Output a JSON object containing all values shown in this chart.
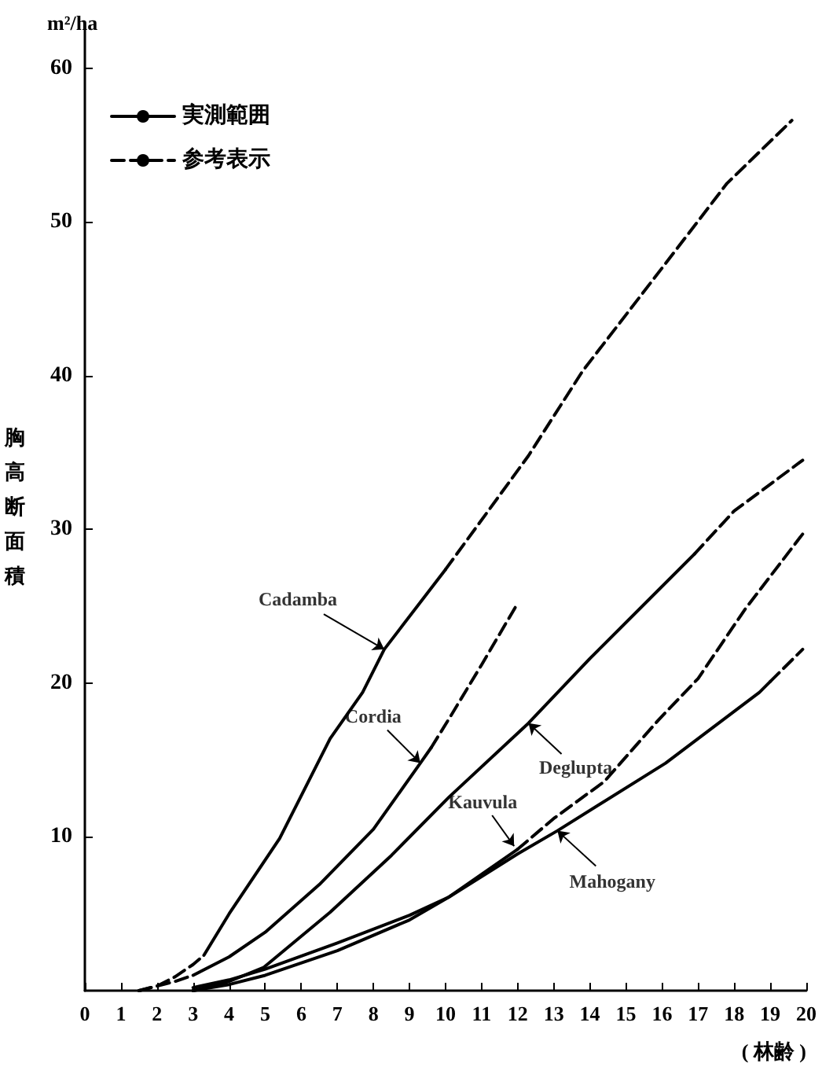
{
  "chart_data": {
    "type": "line",
    "ylabel": "胸高断面積",
    "xlabel": "( 林齢 )",
    "xlim": [
      0,
      20
    ],
    "xticks": [
      0,
      1,
      2,
      3,
      4,
      5,
      6,
      7,
      8,
      9,
      10,
      11,
      12,
      13,
      14,
      15,
      16,
      17,
      18,
      19,
      20
    ],
    "ylim": [
      0,
      63
    ],
    "yticks": [
      10,
      20,
      30,
      40,
      50,
      60
    ],
    "grid": false,
    "legend": "top left",
    "marker": "none",
    "annotations": [
      "m²/ha",
      {
        "text": "Cadamba",
        "x": 8.3,
        "y": 22.2
      },
      {
        "text": "Cordia",
        "x": 9.3,
        "y": 14.8
      },
      {
        "text": "Deglupta",
        "x": 12.3,
        "y": 17.4
      },
      {
        "text": "Kauvula",
        "x": 11.9,
        "y": 9.4
      },
      {
        "text": "Mahogany",
        "x": 13.1,
        "y": 10.4
      }
    ],
    "series": [
      {
        "name": "実測範囲",
        "color": "#000000",
        "line_style": "solid",
        "x": [
          3.3,
          4,
          5.4,
          6.8,
          7.7,
          8.3,
          10
        ],
        "values": [
          2.3,
          5.0,
          9.9,
          16.4,
          19.4,
          22.2,
          27.4
        ]
      },
      {
        "name": "参考表示",
        "color": "#000000",
        "line_style": "dashed",
        "x": [
          1.5,
          2,
          2.5,
          3,
          3.3
        ],
        "values": [
          0,
          0.3,
          0.9,
          1.7,
          2.3
        ]
      },
      {
        "color": "#000000",
        "line_style": "dashed",
        "x": [
          10,
          12.3,
          13.8,
          16.1,
          17.8,
          19.6
        ],
        "values": [
          27.4,
          34.8,
          40.3,
          47.3,
          52.5,
          56.6
        ]
      },
      {
        "color": "#000000",
        "line_style": "solid",
        "x": [
          3,
          4,
          5,
          6.5,
          8,
          9.3,
          9.6
        ],
        "values": [
          1.0,
          2.2,
          3.8,
          6.9,
          10.5,
          14.8,
          15.8
        ]
      },
      {
        "color": "#000000",
        "line_style": "dashed",
        "x": [
          1.5,
          2,
          2.5,
          3
        ],
        "values": [
          0,
          0.3,
          0.6,
          1.0
        ]
      },
      {
        "color": "#000000",
        "line_style": "dashed",
        "x": [
          9.6,
          10.1,
          11,
          12
        ],
        "values": [
          15.8,
          17.7,
          21.2,
          25.2
        ]
      },
      {
        "color": "#000000",
        "line_style": "solid",
        "x": [
          3,
          4,
          4.95,
          6.8,
          8.5,
          10.1,
          12.3,
          14,
          16.9
        ],
        "values": [
          0,
          0.6,
          1.5,
          5.1,
          8.8,
          12.6,
          17.4,
          21.6,
          28.4
        ]
      },
      {
        "color": "#000000",
        "line_style": "dashed",
        "x": [
          16.9,
          18,
          19.9
        ],
        "values": [
          28.4,
          31.2,
          34.5
        ]
      },
      {
        "color": "#000000",
        "line_style": "solid",
        "x": [
          3,
          4,
          5,
          7,
          9,
          10.1,
          12
        ],
        "values": [
          0.2,
          0.7,
          1.4,
          3.1,
          4.9,
          6.1,
          9.2
        ]
      },
      {
        "color": "#000000",
        "line_style": "dashed",
        "x": [
          12,
          13,
          14.4,
          15.9,
          17,
          18.3,
          19.9
        ],
        "values": [
          9.2,
          11.2,
          13.6,
          17.6,
          20.3,
          24.8,
          29.7
        ]
      },
      {
        "color": "#000000",
        "line_style": "solid",
        "x": [
          3,
          4,
          5,
          7,
          9,
          10.1,
          12,
          13.1,
          16.1,
          18.7,
          19
        ],
        "values": [
          0,
          0.4,
          1.0,
          2.6,
          4.6,
          6.1,
          8.9,
          10.4,
          14.8,
          19.4,
          20.1
        ]
      },
      {
        "color": "#000000",
        "line_style": "dashed",
        "x": [
          19,
          19.9
        ],
        "values": [
          20.1,
          22.2
        ]
      }
    ]
  }
}
